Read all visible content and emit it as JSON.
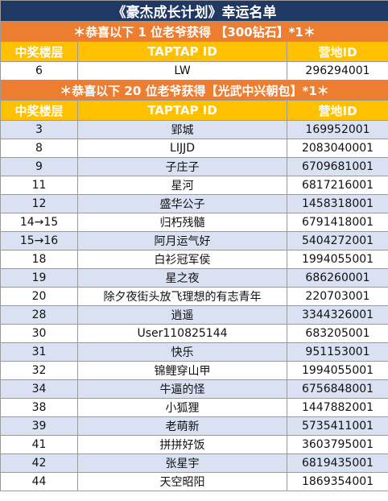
{
  "title": "《豪杰成长计划》幸运名单",
  "section1": {
    "banner": "＊恭喜以下 1 位老爷获得 【300钻石】*1＊",
    "headers": [
      "中奖楼层",
      "TAPTAP ID",
      "营地ID"
    ],
    "rows": [
      [
        "6",
        "LW",
        "296294001"
      ]
    ]
  },
  "section2": {
    "banner": "＊恭喜以下 20 位老爷获得【光武中兴朝包】*1＊",
    "headers": [
      "中奖楼层",
      "TAPTAP ID",
      "营地ID"
    ],
    "rows": [
      [
        "3",
        "郢城",
        "169952001"
      ],
      [
        "8",
        "LIJJD",
        "2083040001"
      ],
      [
        "9",
        "子庄子",
        "6709681001"
      ],
      [
        "11",
        "星河",
        "6817216001"
      ],
      [
        "12",
        "盛华公子",
        "1458318001"
      ],
      [
        "14→15",
        "归朽残髓",
        "6791418001"
      ],
      [
        "15→16",
        "阿月运气好",
        "5404272001"
      ],
      [
        "18",
        "白衫冠军侯",
        "1994055001"
      ],
      [
        "19",
        "星之夜",
        "686260001"
      ],
      [
        "20",
        "除夕夜街头放飞理想的有志青年",
        "220703001"
      ],
      [
        "28",
        "逍遥",
        "3344326001"
      ],
      [
        "30",
        "User110825144",
        "683205001"
      ],
      [
        "31",
        "快乐",
        "951153001"
      ],
      [
        "32",
        "锦鲤穿山甲",
        "1994055001"
      ],
      [
        "34",
        "牛逼的怪",
        "6756848001"
      ],
      [
        "38",
        "小狐狸",
        "1447882001"
      ],
      [
        "39",
        "老萌新",
        "5735411001"
      ],
      [
        "41",
        "拼拼好饭",
        "3603795001"
      ],
      [
        "42",
        "张星宇",
        "6819435001"
      ],
      [
        "44",
        "天空昭阳",
        "1869354001"
      ]
    ]
  },
  "colors": {
    "title_bg": "#1f3864",
    "banner_bg": "#ed7d31",
    "header_bg": "#ffc000",
    "row_alt_bg": "#d9e1f2",
    "text_light": "#ffffff"
  }
}
